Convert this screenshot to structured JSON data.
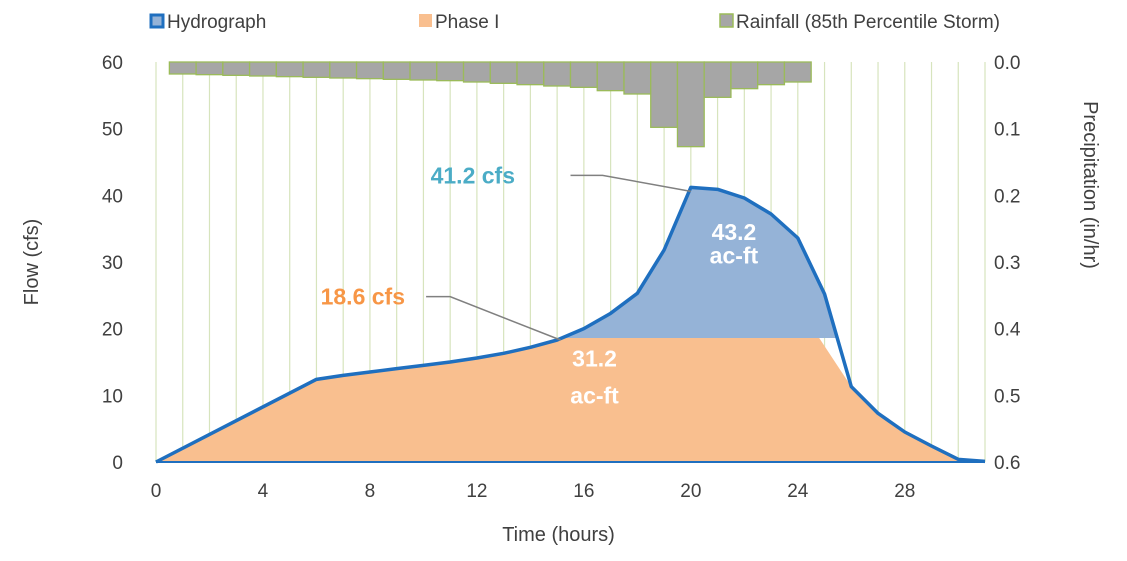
{
  "chart_data": {
    "type": "area",
    "x_title": "Time (hours)",
    "y_title": "Flow (cfs)",
    "y2_title": "Precipitation (in/hr)",
    "xlim": [
      0,
      31
    ],
    "x_ticks": [
      0,
      4,
      8,
      12,
      16,
      20,
      24,
      28
    ],
    "ylim": [
      0,
      60
    ],
    "y_ticks": [
      0,
      10,
      20,
      30,
      40,
      50,
      60
    ],
    "y2lim": [
      0.0,
      0.6
    ],
    "y2_ticks": [
      "0.0",
      "0.1",
      "0.2",
      "0.3",
      "0.4",
      "0.5",
      "0.6"
    ],
    "grid": "vertical lines every 1 hour",
    "legend_position": "top",
    "legend": [
      {
        "key": "hydrograph",
        "label": "Hydrograph"
      },
      {
        "key": "phase1",
        "label": "Phase I"
      },
      {
        "key": "rainfall",
        "label": "Rainfall (85th Percentile Storm)"
      }
    ],
    "colors": {
      "hydrograph_line": "#1F6FBF",
      "hydrograph_fill": "#95B3D7",
      "phase1_fill": "#F9BF8F",
      "rainfall_fill": "#A6A6A6",
      "rainfall_edge": "#9BBB59",
      "grid": "#D7E4BD",
      "peak_label": "#4BACC6",
      "phase1_label": "#F79646",
      "leader": "#808080"
    },
    "series": [
      {
        "key": "hydrograph",
        "axis": "left",
        "x": [
          0,
          6,
          7,
          8,
          9,
          10,
          11,
          12,
          13,
          14,
          15,
          16,
          17,
          18,
          19,
          20,
          21,
          22,
          23,
          24,
          25,
          26,
          27,
          28,
          29,
          30,
          31
        ],
        "y": [
          0,
          12.4,
          13.0,
          13.5,
          14.0,
          14.5,
          15.0,
          15.6,
          16.3,
          17.2,
          18.3,
          20.0,
          22.3,
          25.3,
          31.8,
          41.2,
          40.9,
          39.6,
          37.2,
          33.6,
          25.2,
          11.3,
          7.3,
          4.5,
          2.4,
          0.4,
          0.1
        ]
      },
      {
        "key": "phase1",
        "axis": "left",
        "cap": 18.6,
        "x": [
          0,
          6,
          7,
          8,
          9,
          10,
          11,
          12,
          13,
          14,
          15,
          15.2,
          24.8,
          26,
          27,
          28,
          29,
          30,
          31
        ],
        "y": [
          0,
          12.4,
          13.0,
          13.5,
          14.0,
          14.5,
          15.0,
          15.6,
          16.3,
          17.2,
          18.3,
          18.6,
          18.6,
          11.3,
          7.3,
          4.5,
          2.4,
          0.4,
          0.1
        ]
      },
      {
        "key": "rainfall",
        "axis": "right",
        "bar_width_hours": 1,
        "x_start": [
          0.5,
          1.5,
          2.5,
          3.5,
          4.5,
          5.5,
          6.5,
          7.5,
          8.5,
          9.5,
          10.5,
          11.5,
          12.5,
          13.5,
          14.5,
          15.5,
          16.5,
          17.5,
          18.5,
          19.5,
          20.5,
          21.5,
          22.5,
          23.5
        ],
        "values": [
          0.018,
          0.019,
          0.02,
          0.021,
          0.022,
          0.023,
          0.024,
          0.025,
          0.026,
          0.027,
          0.028,
          0.03,
          0.032,
          0.034,
          0.036,
          0.038,
          0.043,
          0.048,
          0.098,
          0.127,
          0.053,
          0.04,
          0.034,
          0.03
        ]
      }
    ],
    "annotations": [
      {
        "key": "peak",
        "text": "41.2 cfs",
        "point": [
          20,
          41.2
        ]
      },
      {
        "key": "phase1_peak",
        "text": "18.6 cfs",
        "point": [
          15.2,
          18.6
        ]
      },
      {
        "key": "vol_upper_1",
        "text": "43.2"
      },
      {
        "key": "vol_upper_2",
        "text": "ac-ft"
      },
      {
        "key": "vol_lower_1",
        "text": "31.2"
      },
      {
        "key": "vol_lower_2",
        "text": "ac-ft"
      }
    ]
  }
}
